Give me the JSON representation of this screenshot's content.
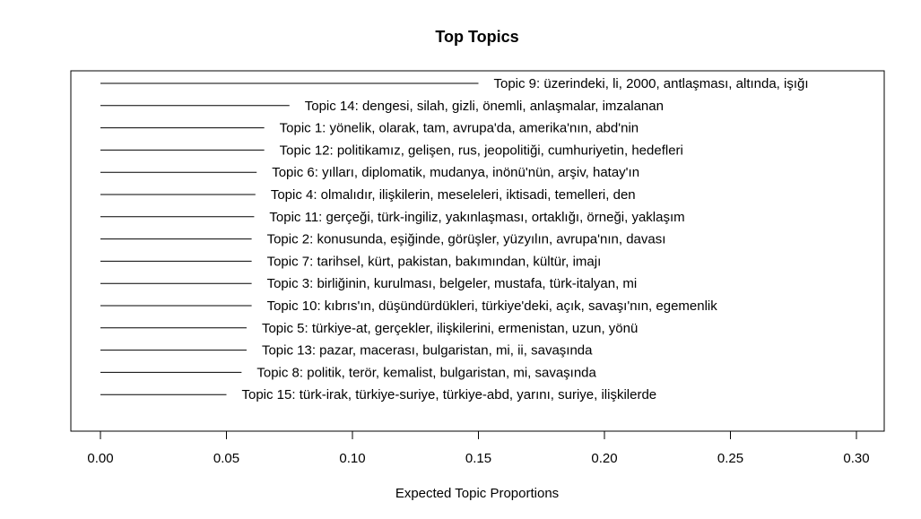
{
  "chart_data": {
    "type": "bar",
    "orientation": "horizontal",
    "title": "Top Topics",
    "xlabel": "Expected Topic Proportions",
    "ylabel": "",
    "xlim": [
      0,
      0.3
    ],
    "x_ticks": [
      "0.00",
      "0.05",
      "0.10",
      "0.15",
      "0.20",
      "0.25",
      "0.30"
    ],
    "grid": false,
    "legend": "none",
    "line_color": "#000000",
    "bars": [
      {
        "label": "Topic 9: üzerindeki, li, 2000, antlaşması, altında, işığı",
        "value": 0.15
      },
      {
        "label": "Topic 14: dengesi, silah, gizli, önemli, anlaşmalar, imzalanan",
        "value": 0.075
      },
      {
        "label": "Topic 1: yönelik, olarak, tam, avrupa'da, amerika'nın, abd'nin",
        "value": 0.065
      },
      {
        "label": "Topic 12: politikamız, gelişen, rus, jeopolitiği, cumhuriyetin, hedefleri",
        "value": 0.065
      },
      {
        "label": "Topic 6: yılları, diplomatik, mudanya, inönü'nün, arşiv, hatay'ın",
        "value": 0.062
      },
      {
        "label": "Topic 4: olmalıdır, ilişkilerin, meseleleri, iktisadi, temelleri, den",
        "value": 0.0615
      },
      {
        "label": "Topic 11: gerçeği, türk-ingiliz, yakınlaşması, ortaklığı, örneği, yaklaşım",
        "value": 0.061
      },
      {
        "label": "Topic 2: konusunda, eşiğinde, görüşler, yüzyılın, avrupa'nın, davası",
        "value": 0.06
      },
      {
        "label": "Topic 7: tarihsel, kürt, pakistan, bakımından, kültür, imajı",
        "value": 0.06
      },
      {
        "label": "Topic 3: birliğinin, kurulması, belgeler, mustafa, türk-italyan, mi",
        "value": 0.06
      },
      {
        "label": "Topic 10: kıbrıs'ın, düşündürdükleri, türkiye'deki, açık, savaşı'nın, egemenlik",
        "value": 0.06
      },
      {
        "label": "Topic 5: türkiye-at, gerçekler, ilişkilerini, ermenistan, uzun, yönü",
        "value": 0.058
      },
      {
        "label": "Topic 13: pazar, macerası, bulgaristan, mi, ii, savaşında",
        "value": 0.058
      },
      {
        "label": "Topic 8: politik, terör, kemalist, bulgaristan, mi, savaşında",
        "value": 0.056
      },
      {
        "label": "Topic 15: türk-irak, türkiye-suriye, türkiye-abd, yarını, suriye, ilişkilerde",
        "value": 0.05
      }
    ]
  }
}
